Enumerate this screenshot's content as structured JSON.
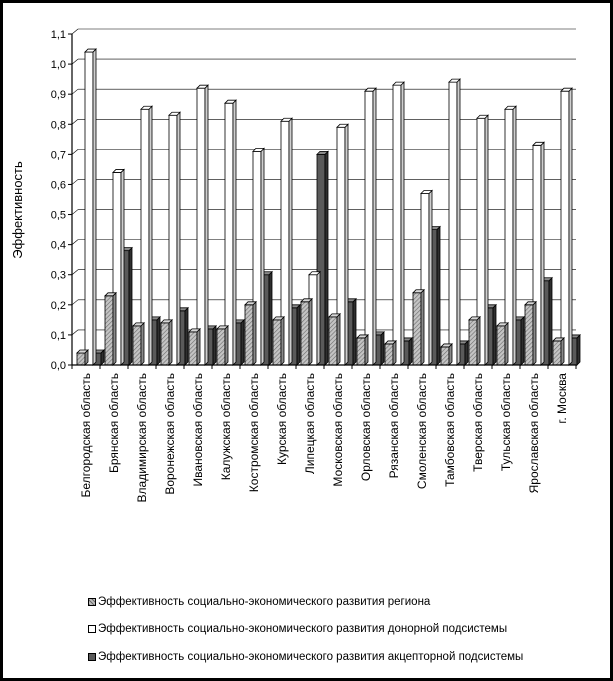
{
  "chart_data": {
    "type": "bar",
    "ylabel": "Эффективность",
    "ylim": [
      0,
      1.1
    ],
    "yticks": [
      "0,0",
      "0,1",
      "0,2",
      "0,3",
      "0,4",
      "0,5",
      "0,6",
      "0,7",
      "0,8",
      "0,9",
      "1,0",
      "1,1"
    ],
    "grid": true,
    "legend_position": "bottom",
    "categories": [
      "Белгородская область",
      "Брянская область",
      "Владимирская область",
      "Воронежская область",
      "Ивановская область",
      "Калужская область",
      "Костромская область",
      "Курская область",
      "Липецкая область",
      "Московская область",
      "Орловская область",
      "Рязанская область",
      "Смоленская область",
      "Тамбовская область",
      "Тверская область",
      "Тульская область",
      "Ярославская область",
      "г. Москва"
    ],
    "series": [
      {
        "name": "Эффективность социально-экономического развития региона",
        "values": [
          0.04,
          0.23,
          0.13,
          0.14,
          0.11,
          0.12,
          0.2,
          0.15,
          0.21,
          0.16,
          0.09,
          0.07,
          0.24,
          0.06,
          0.15,
          0.13,
          0.2,
          0.08
        ]
      },
      {
        "name": "Эффективность социально-экономического развития донорной подсистемы",
        "values": [
          1.04,
          0.64,
          0.85,
          0.83,
          0.92,
          0.87,
          0.71,
          0.81,
          0.3,
          0.79,
          0.91,
          0.93,
          0.57,
          0.94,
          0.82,
          0.85,
          0.73,
          0.91
        ]
      },
      {
        "name": "Эффективность социально-экономического развития акцепторной подсистемы",
        "values": [
          0.04,
          0.38,
          0.15,
          0.18,
          0.12,
          0.14,
          0.3,
          0.19,
          0.7,
          0.21,
          0.1,
          0.08,
          0.45,
          0.07,
          0.19,
          0.15,
          0.28,
          0.09
        ]
      }
    ],
    "colors": {
      "series1": "#bdbdbd",
      "series2": "#ffffff",
      "series3": "#5a5a5a",
      "axis": "#000000"
    }
  }
}
